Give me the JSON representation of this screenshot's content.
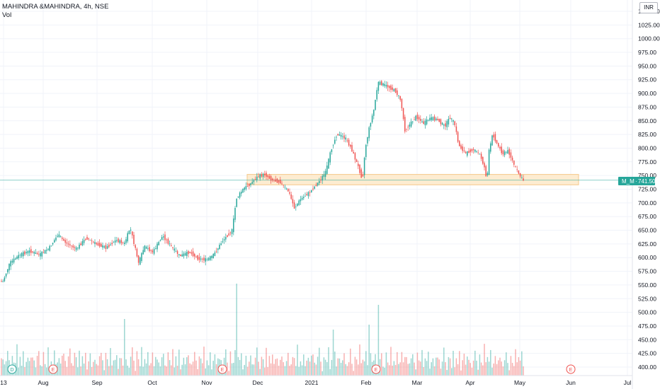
{
  "header": {
    "symbol_line": "MAHINDRA &MAHINDRA, 4h, NSE",
    "volume_label": "Vol"
  },
  "currency_button": "INR",
  "price_tag": {
    "symbol": "M_M",
    "value": "741.50"
  },
  "colors": {
    "up": "#26a69a",
    "down": "#ef5350",
    "zone_fill": "#fde9c9",
    "zone_border": "#f5c88a",
    "hline": "#26a69a"
  },
  "event_markers": [
    {
      "letter": "D",
      "type": "dividend"
    },
    {
      "letter": "E",
      "type": "earnings"
    },
    {
      "letter": "E",
      "type": "earnings"
    },
    {
      "letter": "E",
      "type": "earnings"
    },
    {
      "letter": "E",
      "type": "earnings"
    }
  ],
  "chart_data": {
    "type": "candlestick",
    "x_ticks": [
      "13",
      "Aug",
      "Sep",
      "Oct",
      "Nov",
      "Dec",
      "2021",
      "Feb",
      "Mar",
      "Apr",
      "May",
      "Jun",
      "Jul"
    ],
    "y_ticks": [
      "1050.00",
      "1025.00",
      "1000.00",
      "975.00",
      "950.00",
      "925.00",
      "900.00",
      "875.00",
      "850.00",
      "825.00",
      "800.00",
      "775.00",
      "750.00",
      "725.00",
      "700.00",
      "675.00",
      "650.00",
      "625.00",
      "600.00",
      "575.00",
      "550.00",
      "525.00",
      "500.00",
      "475.00",
      "450.00",
      "425.00",
      "400.00"
    ],
    "ylim": [
      393,
      1055
    ],
    "support_zone": [
      733,
      752
    ],
    "last_price": 741.5,
    "price_path": [
      [
        0,
        558
      ],
      [
        6,
        555
      ],
      [
        16,
        590
      ],
      [
        30,
        605
      ],
      [
        44,
        612
      ],
      [
        58,
        605
      ],
      [
        72,
        618
      ],
      [
        84,
        642
      ],
      [
        96,
        626
      ],
      [
        110,
        616
      ],
      [
        124,
        636
      ],
      [
        138,
        625
      ],
      [
        152,
        618
      ],
      [
        166,
        632
      ],
      [
        178,
        626
      ],
      [
        186,
        655
      ],
      [
        198,
        590
      ],
      [
        206,
        620
      ],
      [
        218,
        610
      ],
      [
        232,
        640
      ],
      [
        244,
        620
      ],
      [
        256,
        603
      ],
      [
        270,
        610
      ],
      [
        282,
        598
      ],
      [
        294,
        596
      ],
      [
        304,
        605
      ],
      [
        316,
        630
      ],
      [
        330,
        650
      ],
      [
        336,
        708
      ],
      [
        346,
        726
      ],
      [
        356,
        735
      ],
      [
        366,
        748
      ],
      [
        376,
        752
      ],
      [
        386,
        742
      ],
      [
        398,
        738
      ],
      [
        410,
        720
      ],
      [
        418,
        690
      ],
      [
        426,
        706
      ],
      [
        440,
        720
      ],
      [
        452,
        738
      ],
      [
        462,
        756
      ],
      [
        470,
        798
      ],
      [
        478,
        826
      ],
      [
        490,
        818
      ],
      [
        498,
        800
      ],
      [
        508,
        766
      ],
      [
        514,
        742
      ],
      [
        518,
        800
      ],
      [
        524,
        840
      ],
      [
        530,
        870
      ],
      [
        536,
        920
      ],
      [
        546,
        915
      ],
      [
        560,
        905
      ],
      [
        568,
        888
      ],
      [
        574,
        833
      ],
      [
        582,
        845
      ],
      [
        590,
        858
      ],
      [
        600,
        845
      ],
      [
        610,
        855
      ],
      [
        620,
        852
      ],
      [
        630,
        840
      ],
      [
        638,
        856
      ],
      [
        644,
        845
      ],
      [
        650,
        805
      ],
      [
        660,
        790
      ],
      [
        670,
        798
      ],
      [
        680,
        788
      ],
      [
        686,
        766
      ],
      [
        690,
        740
      ],
      [
        692,
        790
      ],
      [
        698,
        826
      ],
      [
        704,
        808
      ],
      [
        712,
        790
      ],
      [
        720,
        795
      ],
      [
        728,
        770
      ],
      [
        734,
        755
      ],
      [
        740,
        741.5
      ]
    ],
    "volume_pattern": [
      22,
      14,
      8,
      18,
      30,
      12,
      6,
      25,
      16,
      10,
      35,
      9,
      20,
      13,
      28,
      7,
      15,
      24,
      11,
      19
    ]
  }
}
